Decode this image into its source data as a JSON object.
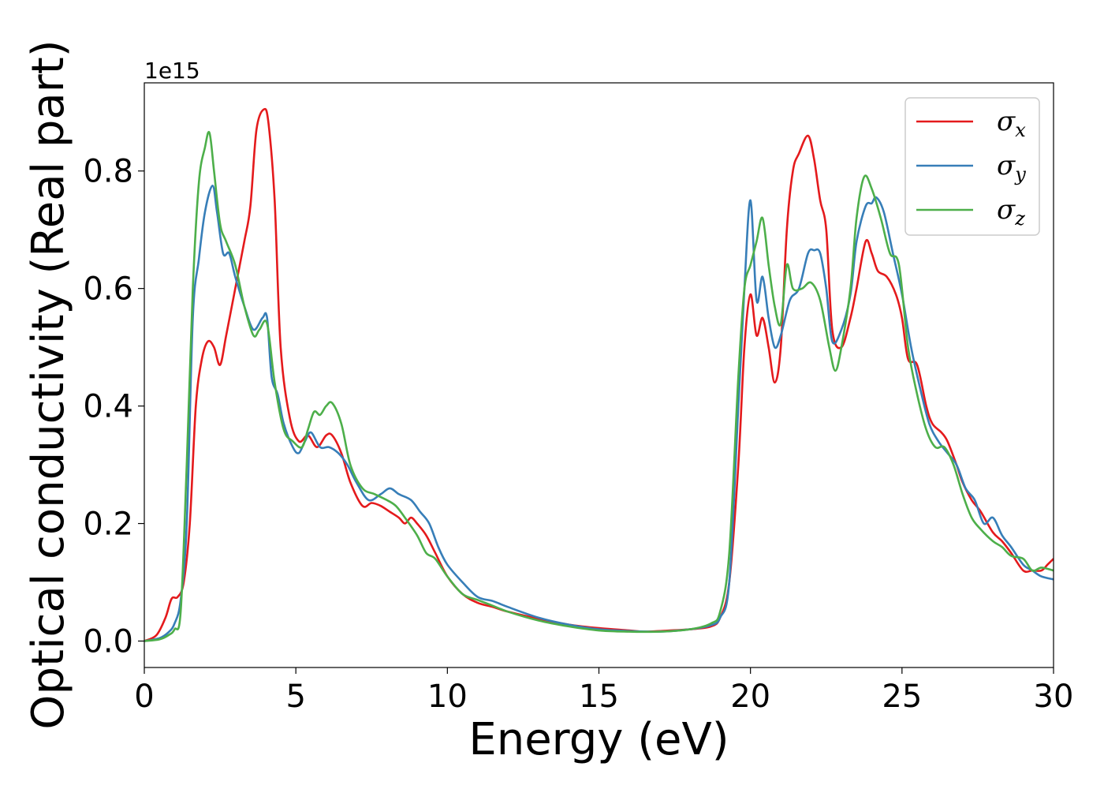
{
  "chart_data": {
    "type": "line",
    "title": "",
    "xlabel": "Energy (eV)",
    "ylabel": "Optical conductivity (Real part)",
    "y_offset_label": "1e15",
    "xlim": [
      0,
      30
    ],
    "ylim": [
      -0.045,
      0.95
    ],
    "xticks": [
      0,
      5,
      10,
      15,
      20,
      25,
      30
    ],
    "xtick_labels": [
      "0",
      "5",
      "10",
      "15",
      "20",
      "25",
      "30"
    ],
    "yticks": [
      0.0,
      0.2,
      0.4,
      0.6,
      0.8
    ],
    "ytick_labels": [
      "0.0",
      "0.2",
      "0.4",
      "0.6",
      "0.8"
    ],
    "grid": false,
    "legend_position": "top-right",
    "series": [
      {
        "name": "σx",
        "symbol": "σ",
        "subscript": "x",
        "color": "#e41a1c",
        "x": [
          0,
          0.4,
          0.7,
          0.9,
          1.1,
          1.3,
          1.5,
          1.7,
          1.9,
          2.1,
          2.3,
          2.5,
          2.7,
          3.0,
          3.3,
          3.5,
          3.7,
          3.95,
          4.1,
          4.3,
          4.5,
          4.8,
          5.1,
          5.4,
          5.7,
          6.0,
          6.2,
          6.5,
          6.8,
          7.2,
          7.5,
          7.8,
          8.1,
          8.4,
          8.6,
          8.8,
          9.0,
          9.3,
          9.6,
          10.0,
          10.5,
          11.0,
          11.5,
          12.0,
          13.0,
          14.0,
          15.0,
          16.0,
          16.5,
          17.0,
          18.0,
          18.7,
          19.0,
          19.3,
          19.6,
          19.8,
          20.0,
          20.2,
          20.4,
          20.6,
          20.8,
          21.0,
          21.2,
          21.4,
          21.6,
          21.9,
          22.1,
          22.3,
          22.5,
          22.7,
          23.0,
          23.3,
          23.5,
          23.8,
          24.0,
          24.2,
          24.5,
          24.8,
          25.0,
          25.2,
          25.5,
          25.8,
          26.0,
          26.3,
          26.5,
          26.8,
          27.0,
          27.3,
          27.6,
          28.0,
          28.3,
          28.6,
          29.0,
          29.3,
          29.6,
          29.8,
          30.0
        ],
        "y": [
          0.0,
          0.01,
          0.04,
          0.072,
          0.075,
          0.1,
          0.2,
          0.4,
          0.48,
          0.51,
          0.5,
          0.47,
          0.52,
          0.6,
          0.68,
          0.74,
          0.87,
          0.905,
          0.88,
          0.75,
          0.5,
          0.38,
          0.34,
          0.35,
          0.33,
          0.35,
          0.35,
          0.32,
          0.27,
          0.23,
          0.235,
          0.23,
          0.22,
          0.21,
          0.2,
          0.21,
          0.2,
          0.18,
          0.15,
          0.11,
          0.08,
          0.065,
          0.058,
          0.05,
          0.038,
          0.028,
          0.022,
          0.018,
          0.016,
          0.017,
          0.02,
          0.025,
          0.04,
          0.1,
          0.3,
          0.5,
          0.59,
          0.52,
          0.55,
          0.5,
          0.44,
          0.5,
          0.7,
          0.8,
          0.83,
          0.86,
          0.82,
          0.75,
          0.7,
          0.53,
          0.5,
          0.55,
          0.6,
          0.68,
          0.66,
          0.63,
          0.62,
          0.59,
          0.55,
          0.48,
          0.47,
          0.4,
          0.37,
          0.355,
          0.34,
          0.3,
          0.27,
          0.24,
          0.22,
          0.185,
          0.17,
          0.15,
          0.12,
          0.12,
          0.12,
          0.13,
          0.14
        ]
      },
      {
        "name": "σy",
        "symbol": "σ",
        "subscript": "y",
        "color": "#377eb8",
        "x": [
          0,
          0.5,
          0.8,
          1.0,
          1.2,
          1.4,
          1.6,
          1.8,
          2.0,
          2.25,
          2.4,
          2.6,
          2.8,
          3.0,
          3.3,
          3.6,
          3.9,
          4.05,
          4.2,
          4.4,
          4.6,
          4.9,
          5.1,
          5.3,
          5.5,
          5.8,
          6.1,
          6.4,
          6.7,
          7.0,
          7.4,
          7.8,
          8.1,
          8.4,
          8.8,
          9.1,
          9.4,
          9.7,
          10.0,
          10.5,
          11.0,
          11.5,
          12.0,
          13.0,
          14.0,
          15.0,
          16.0,
          17.0,
          18.0,
          18.7,
          19.0,
          19.3,
          19.6,
          19.8,
          20.0,
          20.2,
          20.4,
          20.6,
          20.8,
          21.0,
          21.3,
          21.6,
          21.9,
          22.1,
          22.3,
          22.5,
          22.7,
          23.0,
          23.3,
          23.5,
          23.8,
          24.0,
          24.15,
          24.4,
          24.7,
          25.0,
          25.3,
          25.6,
          25.9,
          26.2,
          26.5,
          26.8,
          27.1,
          27.4,
          27.7,
          28.0,
          28.3,
          28.6,
          29.0,
          29.3,
          29.6,
          30.0
        ],
        "y": [
          0.0,
          0.005,
          0.015,
          0.03,
          0.07,
          0.2,
          0.55,
          0.65,
          0.73,
          0.775,
          0.73,
          0.66,
          0.66,
          0.62,
          0.57,
          0.53,
          0.55,
          0.55,
          0.45,
          0.42,
          0.37,
          0.33,
          0.32,
          0.34,
          0.355,
          0.33,
          0.33,
          0.32,
          0.3,
          0.27,
          0.24,
          0.25,
          0.26,
          0.25,
          0.24,
          0.22,
          0.2,
          0.16,
          0.13,
          0.1,
          0.075,
          0.068,
          0.058,
          0.04,
          0.028,
          0.02,
          0.017,
          0.016,
          0.02,
          0.027,
          0.04,
          0.1,
          0.4,
          0.6,
          0.75,
          0.58,
          0.62,
          0.55,
          0.5,
          0.52,
          0.58,
          0.6,
          0.66,
          0.665,
          0.66,
          0.6,
          0.51,
          0.53,
          0.59,
          0.68,
          0.74,
          0.745,
          0.755,
          0.73,
          0.66,
          0.59,
          0.5,
          0.43,
          0.37,
          0.34,
          0.32,
          0.3,
          0.26,
          0.24,
          0.2,
          0.21,
          0.18,
          0.16,
          0.13,
          0.12,
          0.11,
          0.105
        ]
      },
      {
        "name": "σz",
        "symbol": "σ",
        "subscript": "z",
        "color": "#4daf4a",
        "x": [
          0,
          0.5,
          0.8,
          1.0,
          1.2,
          1.4,
          1.6,
          1.8,
          2.0,
          2.15,
          2.3,
          2.5,
          2.7,
          3.0,
          3.3,
          3.6,
          3.8,
          4.05,
          4.3,
          4.6,
          4.9,
          5.2,
          5.4,
          5.6,
          5.8,
          6.0,
          6.2,
          6.5,
          6.8,
          7.2,
          7.6,
          8.0,
          8.3,
          8.6,
          9.0,
          9.3,
          9.6,
          10.0,
          10.5,
          11.0,
          11.5,
          12.0,
          13.0,
          14.0,
          15.0,
          16.0,
          17.0,
          18.0,
          18.7,
          19.0,
          19.3,
          19.6,
          19.8,
          20.0,
          20.2,
          20.4,
          20.6,
          20.8,
          21.0,
          21.2,
          21.4,
          21.7,
          22.0,
          22.3,
          22.6,
          22.8,
          23.0,
          23.3,
          23.5,
          23.75,
          24.0,
          24.3,
          24.6,
          24.9,
          25.2,
          25.5,
          25.8,
          26.1,
          26.4,
          26.7,
          27.0,
          27.3,
          27.6,
          28.0,
          28.3,
          28.6,
          29.0,
          29.3,
          29.6,
          30.0
        ],
        "y": [
          0.0,
          0.003,
          0.01,
          0.02,
          0.05,
          0.3,
          0.6,
          0.78,
          0.84,
          0.865,
          0.8,
          0.71,
          0.68,
          0.64,
          0.57,
          0.52,
          0.53,
          0.54,
          0.44,
          0.36,
          0.34,
          0.33,
          0.36,
          0.39,
          0.385,
          0.4,
          0.405,
          0.37,
          0.3,
          0.26,
          0.25,
          0.24,
          0.23,
          0.21,
          0.18,
          0.15,
          0.14,
          0.11,
          0.08,
          0.07,
          0.06,
          0.05,
          0.035,
          0.025,
          0.018,
          0.016,
          0.016,
          0.02,
          0.03,
          0.05,
          0.15,
          0.45,
          0.6,
          0.64,
          0.68,
          0.72,
          0.64,
          0.57,
          0.54,
          0.64,
          0.6,
          0.6,
          0.61,
          0.58,
          0.5,
          0.46,
          0.5,
          0.6,
          0.72,
          0.79,
          0.77,
          0.72,
          0.66,
          0.64,
          0.5,
          0.42,
          0.36,
          0.33,
          0.33,
          0.3,
          0.25,
          0.21,
          0.19,
          0.17,
          0.16,
          0.145,
          0.14,
          0.12,
          0.125,
          0.12
        ]
      }
    ]
  }
}
